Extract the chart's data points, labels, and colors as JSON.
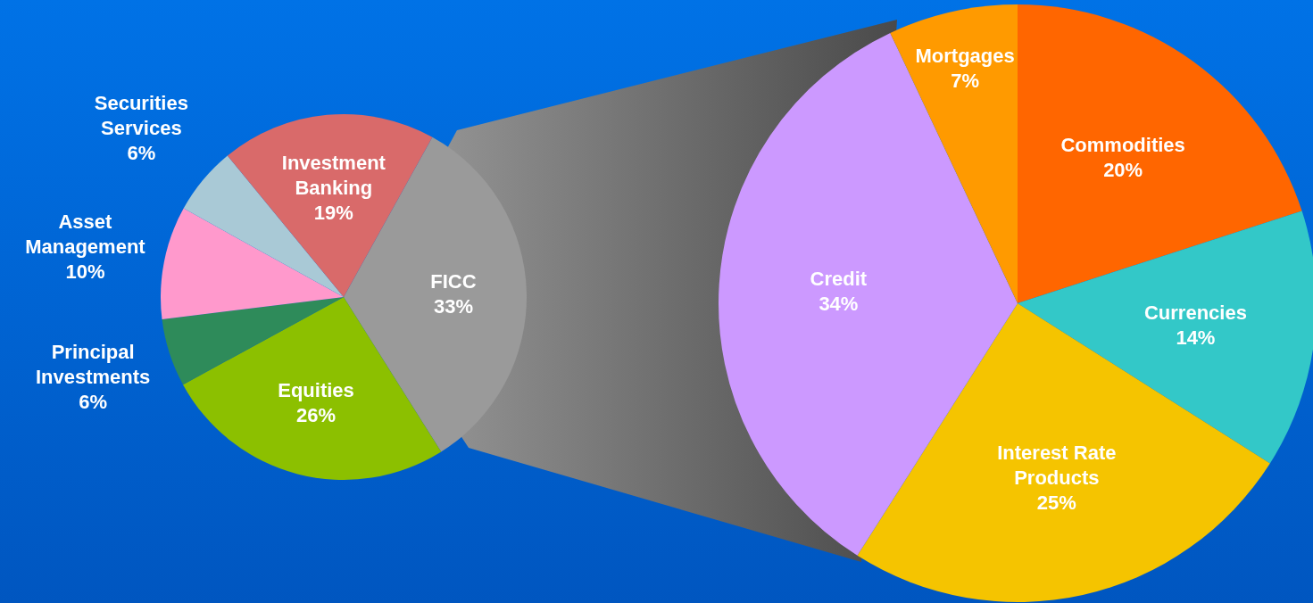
{
  "chart_data": [
    {
      "type": "pie",
      "categories": [
        "FICC",
        "Equities",
        "Principal Investments",
        "Asset Management",
        "Securities Services",
        "Investment Banking"
      ],
      "values": [
        33,
        26,
        6,
        10,
        6,
        19
      ],
      "value_labels": [
        "33%",
        "26%",
        "6%",
        "10%",
        "6%",
        "19%"
      ],
      "colors": [
        "#9a9a9a",
        "#8cc000",
        "#2e8b5a",
        "#ff99cc",
        "#a9c9d6",
        "#d96a6a"
      ]
    },
    {
      "type": "pie",
      "categories": [
        "Commodities",
        "Currencies",
        "Interest Rate Products",
        "Credit",
        "Mortgages"
      ],
      "values": [
        20,
        14,
        25,
        34,
        7
      ],
      "value_labels": [
        "20%",
        "14%",
        "25%",
        "34%",
        "7%"
      ],
      "colors": [
        "#ff6600",
        "#33c8c8",
        "#f5c400",
        "#cc99ff",
        "#ff9a00"
      ]
    }
  ]
}
